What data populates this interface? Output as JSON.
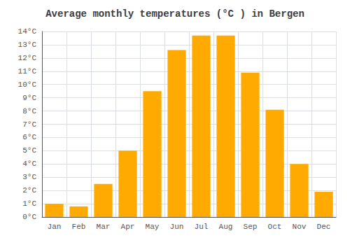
{
  "chart_data": {
    "type": "bar",
    "title": "Average monthly temperatures (°C ) in Bergen",
    "categories": [
      "Jan",
      "Feb",
      "Mar",
      "Apr",
      "May",
      "Jun",
      "Jul",
      "Aug",
      "Sep",
      "Oct",
      "Nov",
      "Dec"
    ],
    "values": [
      1.0,
      0.8,
      2.5,
      5.0,
      9.5,
      12.6,
      13.7,
      13.7,
      10.9,
      8.1,
      4.0,
      1.9
    ],
    "color": "#FFAA00",
    "ylim": [
      0,
      14
    ],
    "yticks": [
      {
        "value": 0,
        "label": "0°C"
      },
      {
        "value": 1,
        "label": "1°C"
      },
      {
        "value": 2,
        "label": "2°C"
      },
      {
        "value": 3,
        "label": "3°C"
      },
      {
        "value": 4,
        "label": "4°C"
      },
      {
        "value": 5,
        "label": "5°C"
      },
      {
        "value": 6,
        "label": "6°C"
      },
      {
        "value": 7,
        "label": "7°C"
      },
      {
        "value": 8,
        "label": "8°C"
      },
      {
        "value": 9,
        "label": "9°C"
      },
      {
        "value": 10,
        "label": "10°C"
      },
      {
        "value": 11,
        "label": "11°C"
      },
      {
        "value": 12,
        "label": "12°C"
      },
      {
        "value": 13,
        "label": "13°C"
      },
      {
        "value": 14,
        "label": "14°C"
      }
    ],
    "grid": true
  }
}
